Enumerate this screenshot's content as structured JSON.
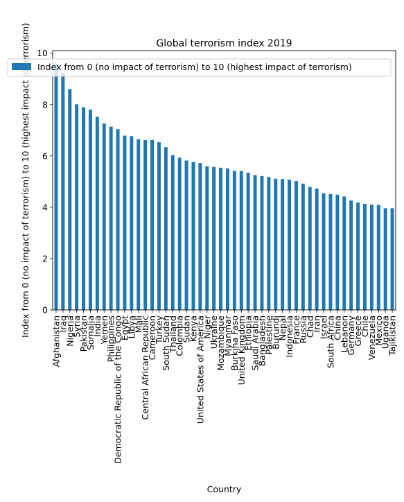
{
  "chart_data": {
    "type": "bar",
    "title": "Global terrorism index 2019",
    "xlabel": "Country",
    "ylabel": "Index from 0 (no impact of terrorism) to 10 (highest impact of terrorism)",
    "ylim": [
      0,
      10.1
    ],
    "yticks": [
      0,
      2,
      4,
      6,
      8,
      10
    ],
    "grid": false,
    "legend": {
      "placement": "top",
      "entries": [
        "Index from 0 (no impact of terrorism) to 10 (highest impact of terrorism)"
      ]
    },
    "bar_color": "#1f77b4",
    "categories": [
      "Afghanistan",
      "Iraq",
      "Nigeria",
      "Syria",
      "Pakistan",
      "Somalia",
      "India",
      "Yemen",
      "Philippines",
      "Democratic Republic of the Congo",
      "Egypt",
      "Libya",
      "Mali",
      "Central African Republic",
      "Cameroon",
      "Turkey",
      "South Sudan",
      "Thailand",
      "Colombia",
      "Sudan",
      "Kenya",
      "United States of America",
      "Niger",
      "Ukraine",
      "Mozambique",
      "Myanmar",
      "Burkina Faso",
      "United Kingdom",
      "Ethiopia",
      "Saudi Arabia",
      "Bangladesh",
      "Palestine",
      "Burundi",
      "Nepal",
      "Indonesia",
      "France",
      "Russia",
      "Chad",
      "Iran",
      "Israel",
      "South Africa",
      "China",
      "Lebanon",
      "Germany",
      "Greece",
      "Chile",
      "Venezuela",
      "Mexico",
      "Uganda",
      "Tajikistan"
    ],
    "series": [
      {
        "name": "Index from 0 (no impact of terrorism) to 10 (highest impact of terrorism)",
        "values": [
          9.6,
          9.24,
          8.6,
          8.01,
          7.89,
          7.8,
          7.52,
          7.26,
          7.14,
          7.04,
          6.79,
          6.77,
          6.65,
          6.62,
          6.62,
          6.53,
          6.34,
          6.03,
          5.93,
          5.82,
          5.76,
          5.72,
          5.59,
          5.57,
          5.54,
          5.51,
          5.42,
          5.41,
          5.35,
          5.25,
          5.21,
          5.18,
          5.11,
          5.1,
          5.07,
          5.02,
          4.92,
          4.79,
          4.73,
          4.54,
          4.51,
          4.49,
          4.42,
          4.26,
          4.18,
          4.13,
          4.1,
          4.09,
          3.96,
          3.96
        ]
      }
    ]
  }
}
